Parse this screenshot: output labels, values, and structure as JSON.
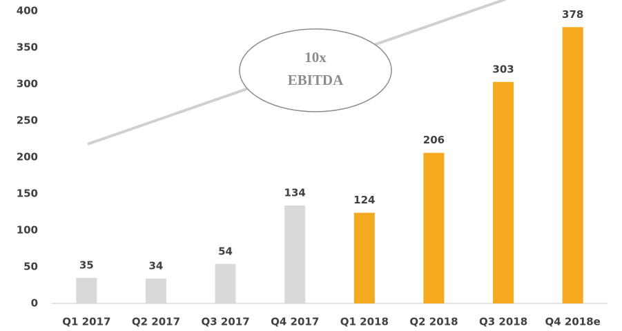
{
  "chart_data": {
    "type": "bar",
    "categories": [
      "Q1 2017",
      "Q2 2017",
      "Q3 2017",
      "Q4 2017",
      "Q1 2018",
      "Q2 2018",
      "Q3 2018",
      "Q4 2018e"
    ],
    "values": [
      35,
      34,
      54,
      134,
      124,
      206,
      303,
      378
    ],
    "colors": [
      "#d9d9d9",
      "#d9d9d9",
      "#d9d9d9",
      "#d9d9d9",
      "#f5a91e",
      "#f5a91e",
      "#f5a91e",
      "#f5a91e"
    ],
    "ylim": [
      0,
      400
    ],
    "yticks": [
      0,
      50,
      100,
      150,
      200,
      250,
      300,
      350,
      400
    ],
    "grid": false,
    "annotation": [
      "10x",
      "EBITDA"
    ]
  }
}
